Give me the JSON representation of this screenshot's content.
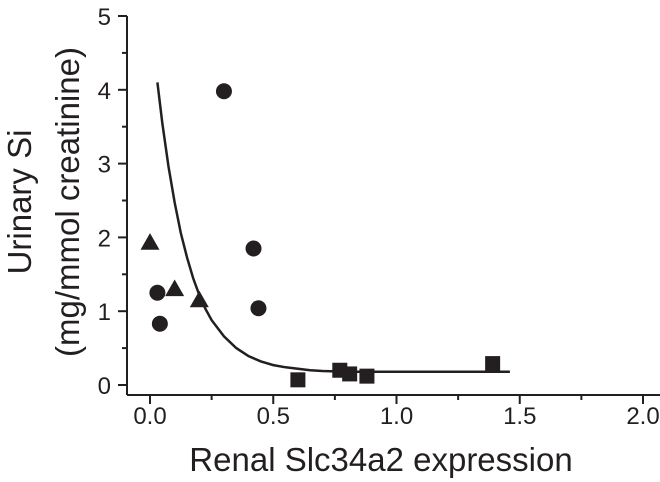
{
  "chart_data": {
    "type": "scatter",
    "xlabel": "Renal Slc34a2 expression",
    "ylabel_line1": "Urinary Si",
    "ylabel_line2": "(mg/mmol creatinine)",
    "xlim": [
      0.0,
      2.0
    ],
    "ylim": [
      0,
      5
    ],
    "x_ticks": [
      "0.0",
      "0.5",
      "1.0",
      "1.5",
      "2.0"
    ],
    "y_ticks": [
      "0",
      "1",
      "2",
      "3",
      "4",
      "5"
    ],
    "grid": false,
    "legend": "none",
    "color": "#231f20",
    "series": [
      {
        "marker": "triangle",
        "points": [
          {
            "x": 0.0,
            "y": 1.93
          },
          {
            "x": 0.1,
            "y": 1.3
          },
          {
            "x": 0.2,
            "y": 1.15
          }
        ]
      },
      {
        "marker": "circle",
        "points": [
          {
            "x": 0.03,
            "y": 1.25
          },
          {
            "x": 0.04,
            "y": 0.83
          },
          {
            "x": 0.3,
            "y": 3.98
          },
          {
            "x": 0.42,
            "y": 1.85
          },
          {
            "x": 0.44,
            "y": 1.04
          }
        ]
      },
      {
        "marker": "square",
        "points": [
          {
            "x": 0.6,
            "y": 0.07
          },
          {
            "x": 0.77,
            "y": 0.2
          },
          {
            "x": 0.81,
            "y": 0.15
          },
          {
            "x": 0.88,
            "y": 0.12
          },
          {
            "x": 1.39,
            "y": 0.29
          }
        ]
      }
    ],
    "fit_curve": {
      "x": [
        0.03,
        0.05,
        0.075,
        0.1,
        0.125,
        0.15,
        0.175,
        0.2,
        0.225,
        0.25,
        0.3,
        0.35,
        0.4,
        0.45,
        0.5,
        0.55,
        0.6,
        0.65,
        0.7,
        0.8,
        0.9,
        1.0,
        1.2,
        1.46
      ],
      "y": [
        4.1,
        3.55,
        2.96,
        2.47,
        2.06,
        1.73,
        1.45,
        1.22,
        1.03,
        0.88,
        0.66,
        0.5,
        0.39,
        0.32,
        0.27,
        0.24,
        0.22,
        0.2,
        0.19,
        0.18,
        0.18,
        0.18,
        0.18,
        0.18
      ]
    }
  }
}
